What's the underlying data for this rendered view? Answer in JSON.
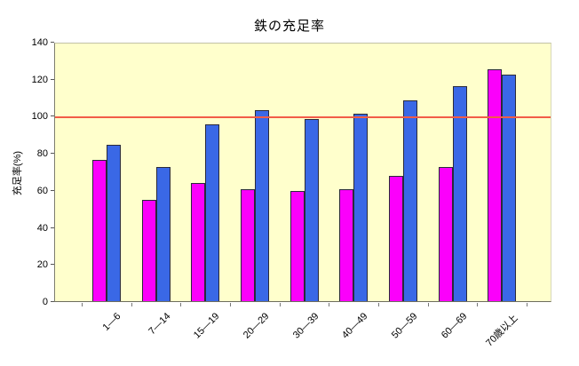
{
  "title": "鉄の充足率",
  "chart_data": {
    "type": "bar",
    "title": "鉄の充足率",
    "xlabel": "",
    "ylabel": "充足率(%)",
    "ylim": [
      0,
      140
    ],
    "yticks": [
      0,
      20,
      40,
      60,
      80,
      100,
      120,
      140
    ],
    "grid": false,
    "legend_position": "none",
    "plot_background": "#FFFFCC",
    "categories": [
      "1—6",
      "7—14",
      "15—19",
      "20—29",
      "30—39",
      "40—49",
      "50—59",
      "60—69",
      "70歳以上"
    ],
    "series": [
      {
        "name": "magenta-series",
        "color": "#FB00FB",
        "values": [
          77,
          55,
          64,
          61,
          60,
          61,
          68,
          73,
          126
        ]
      },
      {
        "name": "blue-series",
        "color": "#3A68E6",
        "values": [
          85,
          73,
          96,
          104,
          99,
          102,
          109,
          117,
          123
        ]
      }
    ],
    "reference_line": {
      "value": 100,
      "color": "#F25C48"
    }
  }
}
